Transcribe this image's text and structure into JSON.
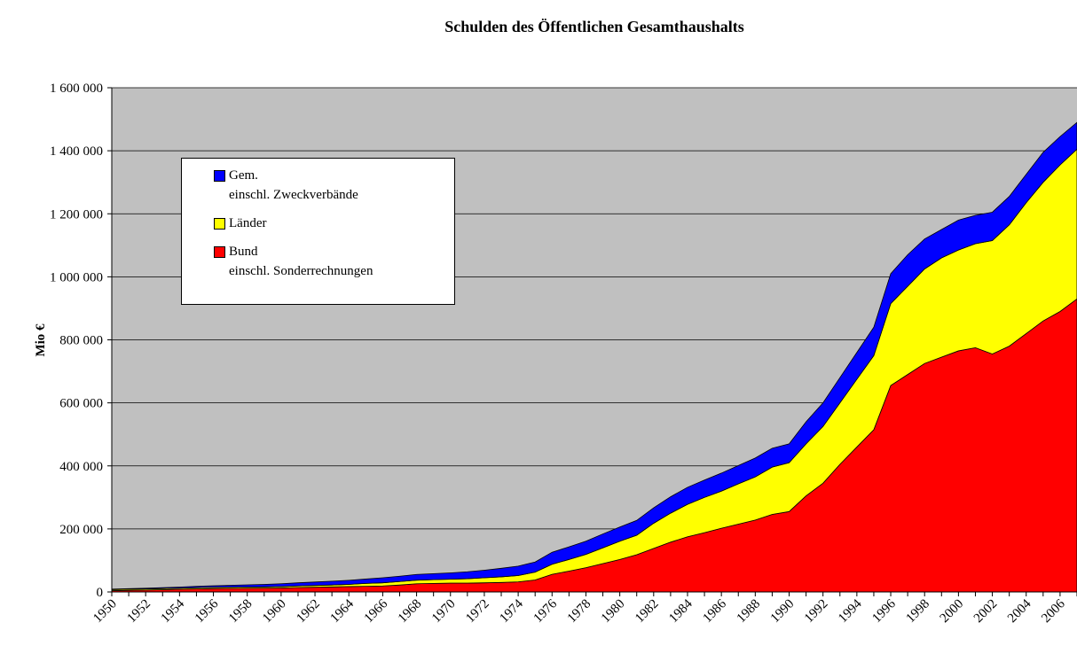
{
  "chart_data": {
    "type": "stacked-area",
    "title": "Schulden des Öffentlichen Gesamthaushalts",
    "y_label": "Mio €",
    "categories": [
      "1950",
      null,
      "1952",
      null,
      "1954",
      null,
      "1956",
      null,
      "1958",
      null,
      "1960",
      null,
      "1962",
      null,
      "1964",
      null,
      "1966",
      null,
      "1968",
      null,
      "1970",
      null,
      "1972",
      null,
      "1974",
      null,
      "1976",
      null,
      "1978",
      null,
      "1980",
      null,
      "1982",
      null,
      "1984",
      null,
      "1986",
      null,
      "1988",
      null,
      "1990",
      null,
      "1992",
      null,
      "1994",
      null,
      "1996",
      null,
      "1998",
      null,
      "2000",
      null,
      "2002",
      null,
      "2004",
      null,
      "2006",
      null
    ],
    "series": [
      {
        "name": "Bund\neinschl. Sonderrechnungen",
        "color": "#ff0000",
        "values": [
          4000,
          5000,
          6000,
          7000,
          8500,
          9500,
          10500,
          11000,
          11500,
          12000,
          12500,
          14000,
          15000,
          16000,
          17000,
          18000,
          19000,
          22000,
          26000,
          27000,
          28000,
          28000,
          29000,
          30000,
          32000,
          38000,
          56000,
          66000,
          77000,
          90000,
          103000,
          118000,
          138000,
          158000,
          175000,
          188000,
          202000,
          215000,
          228000,
          246000,
          255000,
          305000,
          345000,
          405000,
          460000,
          515000,
          655000,
          690000,
          725000,
          745000,
          765000,
          775000,
          755000,
          780000,
          820000,
          860000,
          890000,
          930000
        ]
      },
      {
        "name": "Länder",
        "color": "#ffff00",
        "values": [
          3500,
          3500,
          3500,
          3500,
          3500,
          4000,
          4000,
          4000,
          4000,
          4000,
          4500,
          5000,
          5500,
          6000,
          7000,
          9000,
          10000,
          11000,
          11500,
          12000,
          12500,
          14000,
          16000,
          18000,
          20000,
          25000,
          32000,
          37000,
          42000,
          50000,
          58000,
          62000,
          80000,
          92000,
          103000,
          112000,
          118000,
          128000,
          137000,
          150000,
          155000,
          165000,
          180000,
          195000,
          215000,
          235000,
          260000,
          280000,
          300000,
          315000,
          320000,
          330000,
          360000,
          385000,
          415000,
          440000,
          465000,
          475000
        ]
      },
      {
        "name": "Gem.\neinschl. Zweckverbände",
        "color": "#0000ff",
        "values": [
          1500,
          2000,
          2500,
          3000,
          3500,
          4500,
          5000,
          6000,
          7000,
          8000,
          9000,
          10000,
          11000,
          12000,
          13000,
          14000,
          16000,
          17000,
          18000,
          19000,
          20000,
          22000,
          24000,
          27000,
          30000,
          32000,
          38000,
          40000,
          42000,
          44000,
          45000,
          47000,
          49000,
          52000,
          54000,
          55000,
          57000,
          58000,
          60000,
          60000,
          60000,
          70000,
          75000,
          80000,
          85000,
          90000,
          95000,
          100000,
          95000,
          90000,
          95000,
          90000,
          90000,
          90000,
          90000,
          95000,
          90000,
          85000
        ]
      }
    ],
    "ylim": [
      0,
      1600000
    ],
    "yticks": [
      0,
      {
        "value": 200000,
        "label": "200 000"
      },
      {
        "value": 400000,
        "label": "400 000"
      },
      {
        "value": 600000,
        "label": "600 000"
      },
      {
        "value": 800000,
        "label": "800 000"
      },
      {
        "value": 1000000,
        "label": "1 000 000"
      },
      {
        "value": 1200000,
        "label": "1 200 000"
      },
      {
        "value": 1400000,
        "label": "1 400 000"
      },
      {
        "value": 1600000,
        "label": "1 600 000"
      }
    ],
    "grid": true,
    "background": "#c0c0c0",
    "legend": "top-left"
  }
}
